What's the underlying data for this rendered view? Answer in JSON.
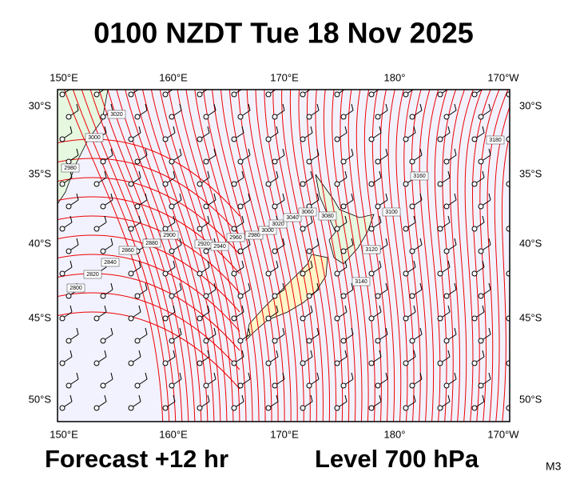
{
  "header": {
    "title": "0100 NZDT Tue 18 Nov 2025"
  },
  "map": {
    "lon_labels": [
      "150°E",
      "160°E",
      "170°E",
      "180°",
      "170°W"
    ],
    "lat_labels": [
      "30°S",
      "35°S",
      "40°S",
      "45°S",
      "50°S"
    ],
    "contour_labels": [
      "3020",
      "3000",
      "2980",
      "2900",
      "2880",
      "2860",
      "2840",
      "2820",
      "2800",
      "2920",
      "2940",
      "2960",
      "2980",
      "3000",
      "3020",
      "3040",
      "3060",
      "3080",
      "3100",
      "3120",
      "3140",
      "3160",
      "3180"
    ]
  },
  "footer": {
    "forecast": "Forecast +12 hr",
    "level": "Level 700 hPa",
    "model": "M3"
  }
}
